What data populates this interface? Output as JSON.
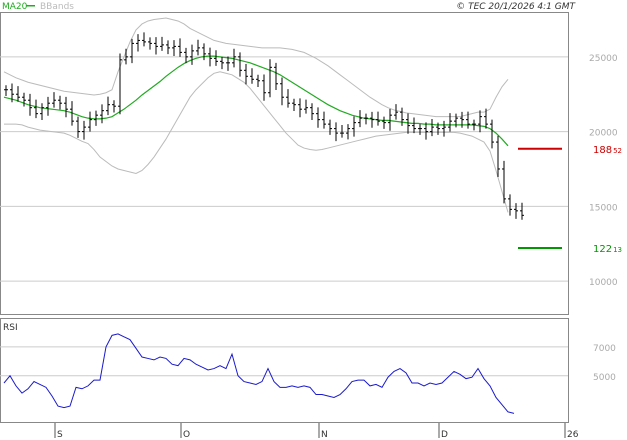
{
  "legend": {
    "ma_label": "MA20",
    "bb_label": "BBands",
    "ma_color": "#22aa22",
    "bb_color": "#bbbbbb"
  },
  "copyright": "© TEC 20/1/2026 4:1 GMT",
  "rsi_label": "RSI",
  "chart_data": [
    {
      "type": "ohlc",
      "yticks": [
        {
          "v": 25000,
          "label": "25000"
        },
        {
          "v": 20000,
          "label": "20000"
        },
        {
          "v": 15000,
          "label": "15000"
        },
        {
          "v": 10000,
          "label": "10000"
        }
      ],
      "x_labels": [
        {
          "i": 0,
          "label": "S"
        },
        {
          "i": 21,
          "label": "O"
        },
        {
          "i": 44,
          "label": "N"
        },
        {
          "i": 64,
          "label": "D"
        },
        {
          "i": 85,
          "label": "26"
        }
      ],
      "ylim": [
        7800,
        28000
      ],
      "resistance": {
        "value": 18852,
        "label_main": "188",
        "label_small": "52",
        "color": "#cc0000"
      },
      "support": {
        "value": 12213,
        "label_main": "122",
        "label_small": "13",
        "color": "#009900"
      },
      "close": [
        22800,
        22500,
        22300,
        22100,
        21600,
        21200,
        21600,
        21900,
        22100,
        21900,
        21500,
        20700,
        20000,
        20300,
        20800,
        21100,
        21400,
        21800,
        21700,
        24800,
        25000,
        25900,
        26100,
        26000,
        25900,
        25700,
        25800,
        25600,
        25700,
        25300,
        25000,
        25400,
        25600,
        25200,
        24900,
        24700,
        24600,
        24600,
        25000,
        24100,
        23700,
        23500,
        23400,
        22600,
        24300,
        23200,
        22300,
        21900,
        21800,
        21500,
        21600,
        21200,
        20800,
        20500,
        20200,
        19900,
        19900,
        20200,
        20600,
        20900,
        20900,
        20800,
        20700,
        20600,
        21100,
        21300,
        20800,
        20400,
        20200,
        20200,
        20000,
        20300,
        20200,
        20300,
        20700,
        20900,
        20800,
        20500,
        20500,
        21000,
        20500,
        19300,
        17500,
        15500,
        14800,
        14700,
        14400
      ],
      "ma20": [
        22300,
        22200,
        22100,
        21950,
        21800,
        21700,
        21600,
        21550,
        21500,
        21450,
        21400,
        21300,
        21150,
        21000,
        20900,
        20850,
        20850,
        20900,
        21000,
        21250,
        21500,
        21800,
        22100,
        22450,
        22750,
        23050,
        23350,
        23700,
        24000,
        24300,
        24550,
        24750,
        24900,
        25000,
        25050,
        25050,
        25000,
        24950,
        24900,
        24800,
        24700,
        24600,
        24450,
        24300,
        24150,
        24000,
        23800,
        23550,
        23300,
        23050,
        22800,
        22550,
        22300,
        22050,
        21800,
        21600,
        21400,
        21250,
        21100,
        21000,
        20900,
        20850,
        20800,
        20750,
        20750,
        20700,
        20650,
        20600,
        20550,
        20550,
        20500,
        20500,
        20450,
        20450,
        20450,
        20450,
        20450,
        20450,
        20450,
        20400,
        20350,
        20200,
        19900,
        19500,
        19050
      ],
      "bb_upper": [
        24000,
        23800,
        23600,
        23450,
        23300,
        23200,
        23100,
        23000,
        22900,
        22800,
        22700,
        22650,
        22600,
        22550,
        22500,
        22450,
        22500,
        22600,
        22800,
        24000,
        25000,
        26000,
        26800,
        27200,
        27400,
        27500,
        27550,
        27600,
        27500,
        27400,
        27200,
        26900,
        26700,
        26500,
        26300,
        26100,
        26000,
        25900,
        25850,
        25800,
        25750,
        25700,
        25650,
        25600,
        25600,
        25600,
        25600,
        25550,
        25500,
        25400,
        25300,
        25100,
        24900,
        24650,
        24400,
        24100,
        23800,
        23500,
        23200,
        22900,
        22600,
        22300,
        22050,
        21800,
        21600,
        21450,
        21350,
        21250,
        21200,
        21150,
        21100,
        21050,
        21000,
        21000,
        21000,
        21000,
        21000,
        21100,
        21200,
        21300,
        21300,
        21500,
        22300,
        23000,
        23500
      ],
      "bb_lower": [
        20500,
        20500,
        20500,
        20450,
        20300,
        20200,
        20100,
        20050,
        20000,
        19950,
        19900,
        19750,
        19550,
        19350,
        19200,
        18800,
        18300,
        18000,
        17700,
        17500,
        17400,
        17300,
        17200,
        17400,
        17800,
        18300,
        18900,
        19500,
        20200,
        20900,
        21600,
        22300,
        22800,
        23200,
        23600,
        23900,
        24000,
        23900,
        23800,
        23550,
        23300,
        22900,
        22400,
        21900,
        21400,
        20900,
        20400,
        19900,
        19500,
        19100,
        18900,
        18800,
        18750,
        18800,
        18900,
        19000,
        19100,
        19200,
        19300,
        19400,
        19500,
        19600,
        19700,
        19750,
        19800,
        19850,
        19900,
        19950,
        19950,
        19950,
        19950,
        19950,
        19950,
        19950,
        19950,
        19950,
        19900,
        19800,
        19700,
        19500,
        19300,
        18700,
        17400,
        16000,
        14600
      ]
    },
    {
      "type": "line",
      "title": "RSI",
      "yticks": [
        {
          "v": 70,
          "label": "7000"
        },
        {
          "v": 50,
          "label": "5000"
        }
      ],
      "ylim": [
        18,
        90
      ],
      "values": [
        45,
        50,
        43,
        38,
        41,
        46,
        44,
        42,
        36,
        29,
        28,
        29,
        42,
        41,
        43,
        47,
        47,
        70,
        78,
        79,
        77,
        75,
        69,
        63,
        62,
        61,
        63,
        62,
        58,
        57,
        62,
        61,
        58,
        56,
        54,
        55,
        57,
        55,
        65,
        50,
        46,
        45,
        44,
        46,
        55,
        46,
        42,
        42,
        43,
        42,
        43,
        42,
        37,
        37,
        36,
        35,
        37,
        41,
        46,
        47,
        47,
        43,
        44,
        42,
        49,
        53,
        55,
        52,
        45,
        45,
        43,
        45,
        44,
        45,
        49,
        53,
        51,
        48,
        49,
        55,
        48,
        43,
        35,
        30,
        25,
        24
      ]
    }
  ]
}
